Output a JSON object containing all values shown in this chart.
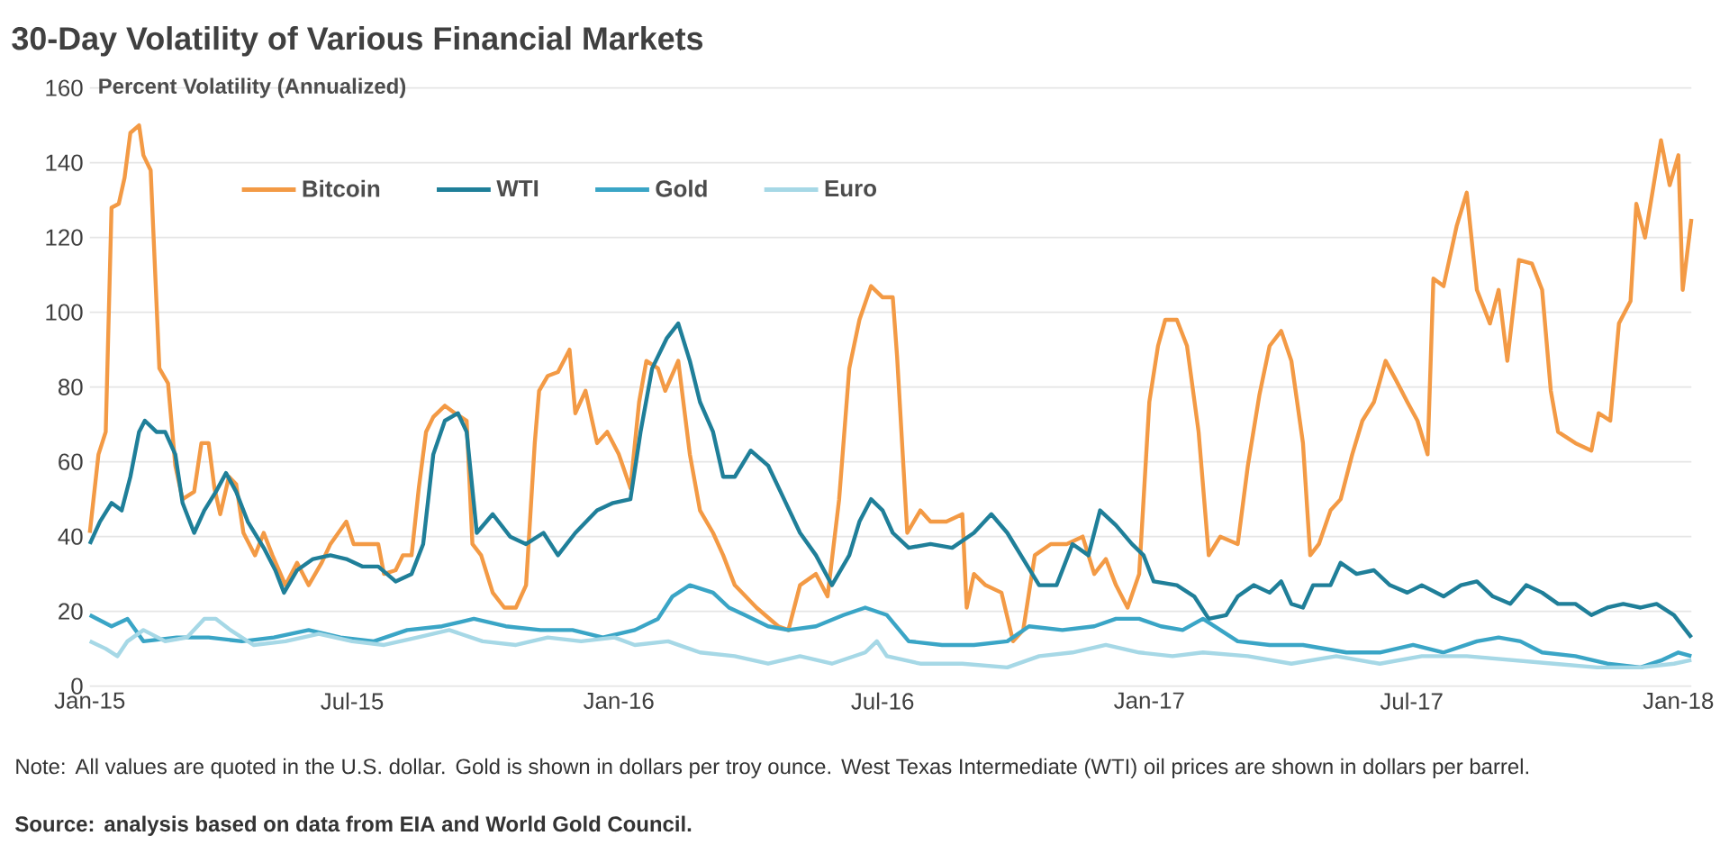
{
  "chart_data": {
    "type": "line",
    "title": "30-Day Volatility of Various Financial Markets",
    "ylabel": "Percent Volatility (Annualized)",
    "xlim": [
      "2015-01-01",
      "2018-01-10"
    ],
    "xticks": [
      {
        "value": "2015-01-01",
        "label": "Jan-15"
      },
      {
        "value": "2015-07-01",
        "label": "Jul-15"
      },
      {
        "value": "2016-01-01",
        "label": "Jan-16"
      },
      {
        "value": "2016-07-01",
        "label": "Jul-16"
      },
      {
        "value": "2017-01-01",
        "label": "Jan-17"
      },
      {
        "value": "2017-07-01",
        "label": "Jul-17"
      },
      {
        "value": "2018-01-01",
        "label": "Jan-18"
      }
    ],
    "ylim": [
      0,
      160
    ],
    "yticks": [
      0,
      20,
      40,
      60,
      80,
      100,
      120,
      140,
      160
    ],
    "grid": "y",
    "legend": "top left",
    "annotations": [
      "Note: All values are quoted in the U.S. dollar. Gold is shown in dollars per troy ounce. West Texas Intermediate (WTI) oil prices are shown in dollars per barrel.",
      "Source: analysis based on data from EIA and World Gold Council."
    ],
    "series": [
      {
        "name": "Bitcoin",
        "color": "#f39a45",
        "x": [
          "2015-01-01",
          "2015-01-07",
          "2015-01-12",
          "2015-01-16",
          "2015-01-21",
          "2015-01-25",
          "2015-01-29",
          "2015-02-04",
          "2015-02-07",
          "2015-02-12",
          "2015-02-18",
          "2015-02-24",
          "2015-03-01",
          "2015-03-06",
          "2015-03-14",
          "2015-03-19",
          "2015-03-24",
          "2015-03-28",
          "2015-04-01",
          "2015-04-07",
          "2015-04-12",
          "2015-04-17",
          "2015-04-25",
          "2015-05-01",
          "2015-05-07",
          "2015-05-16",
          "2015-05-24",
          "2015-06-01",
          "2015-06-10",
          "2015-06-16",
          "2015-06-27",
          "2015-07-02",
          "2015-07-19",
          "2015-07-23",
          "2015-07-31",
          "2015-08-05",
          "2015-08-11",
          "2015-08-16",
          "2015-08-21",
          "2015-08-26",
          "2015-09-03",
          "2015-09-10",
          "2015-09-18",
          "2015-09-22",
          "2015-09-28",
          "2015-10-06",
          "2015-10-14",
          "2015-10-22",
          "2015-10-29",
          "2015-11-04",
          "2015-11-07",
          "2015-11-13",
          "2015-11-20",
          "2015-11-28",
          "2015-12-02",
          "2015-12-09",
          "2015-12-17",
          "2015-12-24",
          "2016-01-01",
          "2016-01-09",
          "2016-01-15",
          "2016-01-20",
          "2016-01-28",
          "2016-02-02",
          "2016-02-11",
          "2016-02-19",
          "2016-02-26",
          "2016-03-06",
          "2016-03-13",
          "2016-03-21",
          "2016-04-05",
          "2016-04-20",
          "2016-04-27",
          "2016-05-05",
          "2016-05-16",
          "2016-05-24",
          "2016-06-01",
          "2016-06-08",
          "2016-06-15",
          "2016-06-23",
          "2016-07-01",
          "2016-07-08",
          "2016-07-11",
          "2016-07-18",
          "2016-07-27",
          "2016-08-03",
          "2016-08-14",
          "2016-08-25",
          "2016-08-28",
          "2016-09-02",
          "2016-09-10",
          "2016-09-21",
          "2016-09-29",
          "2016-10-06",
          "2016-10-14",
          "2016-10-25",
          "2016-11-05",
          "2016-11-16",
          "2016-11-24",
          "2016-12-02",
          "2016-12-09",
          "2016-12-17",
          "2016-12-25",
          "2017-01-01",
          "2017-01-07",
          "2017-01-12",
          "2017-01-20",
          "2017-01-27",
          "2017-02-04",
          "2017-02-11",
          "2017-02-19",
          "2017-03-03",
          "2017-03-10",
          "2017-03-18",
          "2017-03-25",
          "2017-04-02",
          "2017-04-09",
          "2017-04-17",
          "2017-04-22",
          "2017-04-28",
          "2017-05-06",
          "2017-05-13",
          "2017-05-21",
          "2017-05-28",
          "2017-06-05",
          "2017-06-13",
          "2017-06-20",
          "2017-06-28",
          "2017-07-05",
          "2017-07-12",
          "2017-07-16",
          "2017-07-23",
          "2017-08-01",
          "2017-08-08",
          "2017-08-15",
          "2017-08-24",
          "2017-08-30",
          "2017-09-05",
          "2017-09-13",
          "2017-09-22",
          "2017-09-29",
          "2017-10-05",
          "2017-10-10",
          "2017-10-22",
          "2017-11-02",
          "2017-11-07",
          "2017-11-15",
          "2017-11-21",
          "2017-11-29",
          "2017-12-03",
          "2017-12-09",
          "2017-12-20",
          "2017-12-26",
          "2018-01-01",
          "2018-01-04",
          "2018-01-10"
        ],
        "values": [
          41,
          62,
          68,
          128,
          129,
          136,
          148,
          150,
          142,
          138,
          85,
          81,
          59,
          50,
          52,
          65,
          65,
          53,
          46,
          56,
          54,
          41,
          35,
          41,
          35,
          27,
          33,
          27,
          33,
          38,
          44,
          38,
          38,
          30,
          31,
          35,
          35,
          53,
          68,
          72,
          75,
          73,
          71,
          38,
          35,
          25,
          21,
          21,
          27,
          65,
          79,
          83,
          84,
          90,
          73,
          79,
          65,
          68,
          62,
          53,
          76,
          87,
          85,
          79,
          87,
          62,
          47,
          41,
          35,
          27,
          21,
          16,
          15,
          27,
          30,
          24,
          50,
          85,
          98,
          107,
          104,
          104,
          88,
          41,
          47,
          44,
          44,
          46,
          21,
          30,
          27,
          25,
          12,
          15,
          35,
          38,
          38,
          40,
          30,
          34,
          27,
          21,
          30,
          76,
          91,
          98,
          98,
          91,
          68,
          35,
          40,
          38,
          59,
          78,
          91,
          95,
          87,
          65,
          35,
          38,
          47,
          50,
          62,
          71,
          76,
          87,
          82,
          76,
          71,
          62,
          109,
          107,
          123,
          132,
          106,
          97,
          106,
          87,
          114,
          113,
          106,
          79,
          68,
          65,
          63,
          73,
          71,
          97,
          103,
          129,
          120,
          146,
          134,
          142,
          106,
          125
        ]
      },
      {
        "name": "WTI",
        "color": "#1f7f99",
        "x": [
          "2015-01-01",
          "2015-01-08",
          "2015-01-16",
          "2015-01-23",
          "2015-01-29",
          "2015-02-04",
          "2015-02-08",
          "2015-02-16",
          "2015-02-22",
          "2015-03-01",
          "2015-03-06",
          "2015-03-14",
          "2015-03-21",
          "2015-03-29",
          "2015-04-05",
          "2015-04-12",
          "2015-04-20",
          "2015-05-01",
          "2015-05-09",
          "2015-05-15",
          "2015-05-24",
          "2015-06-04",
          "2015-06-16",
          "2015-06-27",
          "2015-07-08",
          "2015-07-19",
          "2015-07-31",
          "2015-08-11",
          "2015-08-19",
          "2015-08-26",
          "2015-09-03",
          "2015-09-12",
          "2015-09-18",
          "2015-09-25",
          "2015-10-06",
          "2015-10-18",
          "2015-10-29",
          "2015-11-10",
          "2015-11-20",
          "2015-12-02",
          "2015-12-17",
          "2015-12-28",
          "2016-01-09",
          "2016-01-16",
          "2016-01-24",
          "2016-02-03",
          "2016-02-11",
          "2016-02-19",
          "2016-02-26",
          "2016-03-06",
          "2016-03-13",
          "2016-03-21",
          "2016-04-01",
          "2016-04-13",
          "2016-04-24",
          "2016-05-05",
          "2016-05-16",
          "2016-05-27",
          "2016-06-08",
          "2016-06-15",
          "2016-06-23",
          "2016-07-01",
          "2016-07-08",
          "2016-07-19",
          "2016-08-03",
          "2016-08-18",
          "2016-09-02",
          "2016-09-14",
          "2016-09-25",
          "2016-10-06",
          "2016-10-17",
          "2016-10-29",
          "2016-11-09",
          "2016-11-20",
          "2016-11-28",
          "2016-12-09",
          "2016-12-20",
          "2016-12-28",
          "2017-01-04",
          "2017-01-20",
          "2017-02-01",
          "2017-02-11",
          "2017-02-23",
          "2017-03-03",
          "2017-03-14",
          "2017-03-25",
          "2017-04-02",
          "2017-04-09",
          "2017-04-17",
          "2017-04-24",
          "2017-05-06",
          "2017-05-13",
          "2017-05-24",
          "2017-06-05",
          "2017-06-16",
          "2017-06-28",
          "2017-07-08",
          "2017-07-23",
          "2017-08-04",
          "2017-08-15",
          "2017-08-26",
          "2017-09-07",
          "2017-09-18",
          "2017-09-29",
          "2017-10-10",
          "2017-10-22",
          "2017-11-02",
          "2017-11-13",
          "2017-11-24",
          "2017-12-06",
          "2017-12-17",
          "2017-12-29",
          "2018-01-10"
        ],
        "values": [
          38,
          44,
          49,
          47,
          56,
          68,
          71,
          68,
          68,
          62,
          49,
          41,
          47,
          52,
          57,
          52,
          44,
          37,
          31,
          25,
          31,
          34,
          35,
          34,
          32,
          32,
          28,
          30,
          38,
          62,
          71,
          73,
          68,
          41,
          46,
          40,
          38,
          41,
          35,
          41,
          47,
          49,
          50,
          68,
          85,
          93,
          97,
          87,
          76,
          68,
          56,
          56,
          63,
          59,
          50,
          41,
          35,
          27,
          35,
          44,
          50,
          47,
          41,
          37,
          38,
          37,
          41,
          46,
          41,
          34,
          27,
          27,
          38,
          35,
          47,
          43,
          38,
          35,
          28,
          27,
          24,
          18,
          19,
          24,
          27,
          25,
          28,
          22,
          21,
          27,
          27,
          33,
          30,
          31,
          27,
          25,
          27,
          24,
          27,
          28,
          24,
          22,
          27,
          25,
          22,
          22,
          19,
          21,
          22,
          21,
          22,
          19,
          13
        ]
      },
      {
        "name": "Gold",
        "color": "#3aa5c6",
        "x": [
          "2015-01-01",
          "2015-01-16",
          "2015-01-27",
          "2015-02-07",
          "2015-03-02",
          "2015-03-24",
          "2015-04-16",
          "2015-05-08",
          "2015-06-01",
          "2015-06-23",
          "2015-07-16",
          "2015-08-08",
          "2015-09-01",
          "2015-09-23",
          "2015-10-15",
          "2015-11-08",
          "2015-11-30",
          "2015-12-21",
          "2016-01-12",
          "2016-01-28",
          "2016-02-07",
          "2016-02-19",
          "2016-03-06",
          "2016-03-17",
          "2016-03-28",
          "2016-04-13",
          "2016-04-27",
          "2016-05-16",
          "2016-06-04",
          "2016-06-19",
          "2016-07-04",
          "2016-07-19",
          "2016-08-11",
          "2016-09-02",
          "2016-09-25",
          "2016-10-10",
          "2016-11-02",
          "2016-11-24",
          "2016-12-09",
          "2016-12-25",
          "2017-01-09",
          "2017-01-24",
          "2017-02-07",
          "2017-02-19",
          "2017-03-03",
          "2017-03-25",
          "2017-04-17",
          "2017-05-17",
          "2017-06-09",
          "2017-07-02",
          "2017-07-23",
          "2017-08-15",
          "2017-08-30",
          "2017-09-14",
          "2017-09-29",
          "2017-10-22",
          "2017-11-13",
          "2017-12-06",
          "2017-12-21",
          "2018-01-01",
          "2018-01-10"
        ],
        "values": [
          19,
          16,
          18,
          12,
          13,
          13,
          12,
          13,
          15,
          13,
          12,
          15,
          16,
          18,
          16,
          15,
          15,
          13,
          15,
          18,
          24,
          27,
          25,
          21,
          19,
          16,
          15,
          16,
          19,
          21,
          19,
          12,
          11,
          11,
          12,
          16,
          15,
          16,
          18,
          18,
          16,
          15,
          18,
          15,
          12,
          11,
          11,
          9,
          9,
          11,
          9,
          12,
          13,
          12,
          9,
          8,
          6,
          5,
          7,
          9,
          8
        ]
      },
      {
        "name": "Euro",
        "color": "#a6d8e6",
        "x": [
          "2015-01-01",
          "2015-01-12",
          "2015-01-20",
          "2015-01-27",
          "2015-02-07",
          "2015-02-22",
          "2015-03-09",
          "2015-03-21",
          "2015-03-29",
          "2015-04-08",
          "2015-04-24",
          "2015-05-16",
          "2015-06-08",
          "2015-07-01",
          "2015-07-23",
          "2015-08-15",
          "2015-09-06",
          "2015-09-29",
          "2015-10-22",
          "2015-11-13",
          "2015-12-06",
          "2015-12-29",
          "2016-01-12",
          "2016-02-04",
          "2016-02-26",
          "2016-03-21",
          "2016-04-13",
          "2016-05-05",
          "2016-05-27",
          "2016-06-19",
          "2016-06-27",
          "2016-07-04",
          "2016-07-27",
          "2016-08-25",
          "2016-09-25",
          "2016-10-17",
          "2016-11-09",
          "2016-12-02",
          "2016-12-25",
          "2017-01-17",
          "2017-02-07",
          "2017-03-10",
          "2017-04-09",
          "2017-05-10",
          "2017-06-09",
          "2017-07-08",
          "2017-08-08",
          "2017-09-07",
          "2017-10-07",
          "2017-11-06",
          "2017-12-06",
          "2017-12-29",
          "2018-01-10"
        ],
        "values": [
          12,
          10,
          8,
          12,
          15,
          12,
          13,
          18,
          18,
          15,
          11,
          12,
          14,
          12,
          11,
          13,
          15,
          12,
          11,
          13,
          12,
          13,
          11,
          12,
          9,
          8,
          6,
          8,
          6,
          9,
          12,
          8,
          6,
          6,
          5,
          8,
          9,
          11,
          9,
          8,
          9,
          8,
          6,
          8,
          6,
          8,
          8,
          7,
          6,
          5,
          5,
          6,
          7
        ]
      }
    ]
  }
}
